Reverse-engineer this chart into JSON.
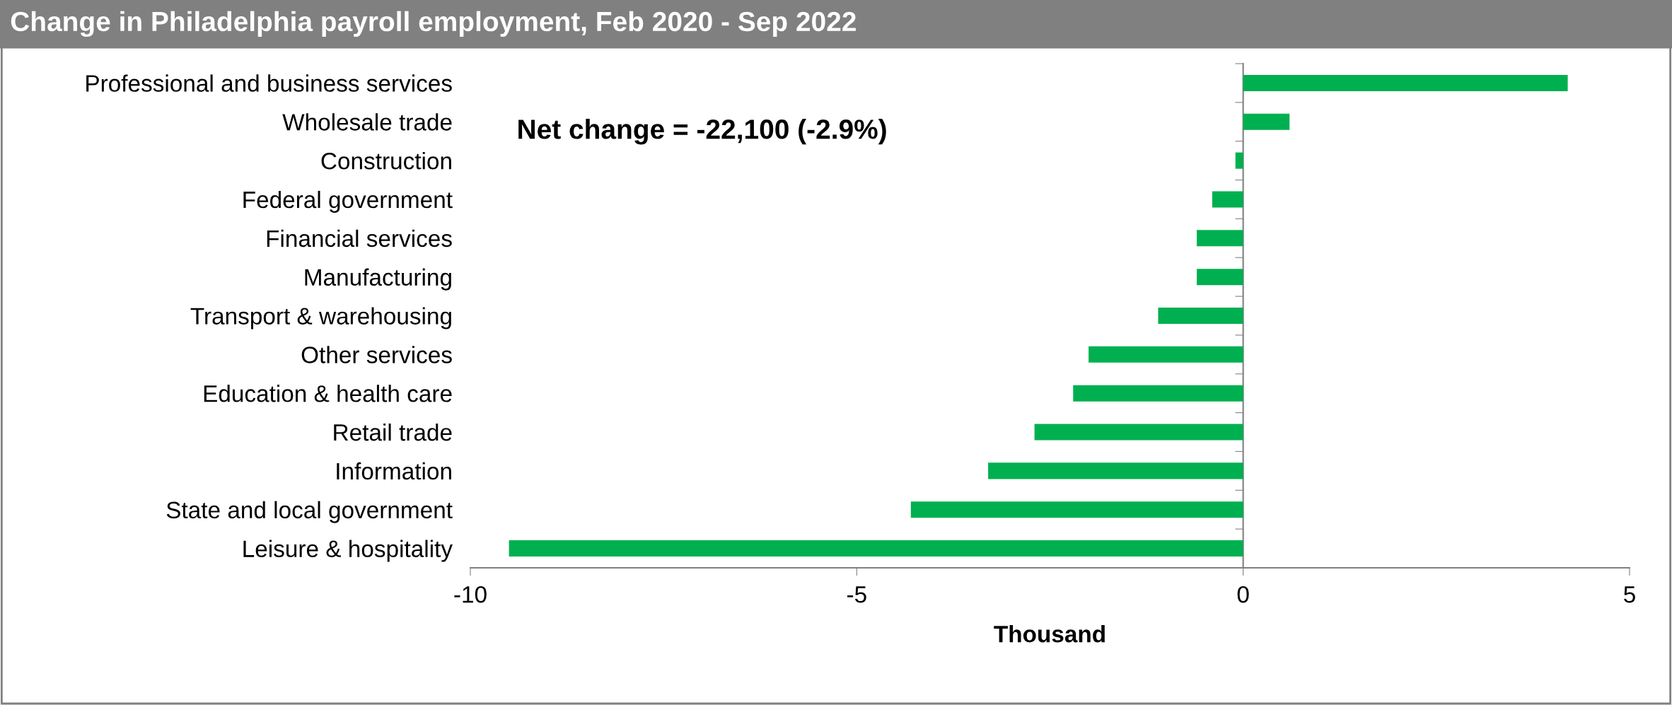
{
  "chart_data": {
    "type": "bar",
    "orientation": "horizontal",
    "title": "Change in Philadelphia payroll employment, Feb 2020 - Sep 2022",
    "xlabel": "Thousand",
    "categories": [
      "Professional and business services",
      "Wholesale trade",
      "Construction",
      "Federal government",
      "Financial services",
      "Manufacturing",
      "Transport & warehousing",
      "Other services",
      "Education & health care",
      "Retail trade",
      "Information",
      "State and local government",
      "Leisure & hospitality"
    ],
    "values": [
      4.2,
      0.6,
      -0.1,
      -0.4,
      -0.6,
      -0.6,
      -1.1,
      -2.0,
      -2.2,
      -2.7,
      -3.3,
      -4.3,
      -9.5
    ],
    "color": "#00b050",
    "xlim": [
      -10,
      5
    ],
    "xticks": [
      -10,
      -5,
      0,
      5
    ],
    "annotations": [
      "Net change = -22,100 (-2.9%)"
    ]
  }
}
